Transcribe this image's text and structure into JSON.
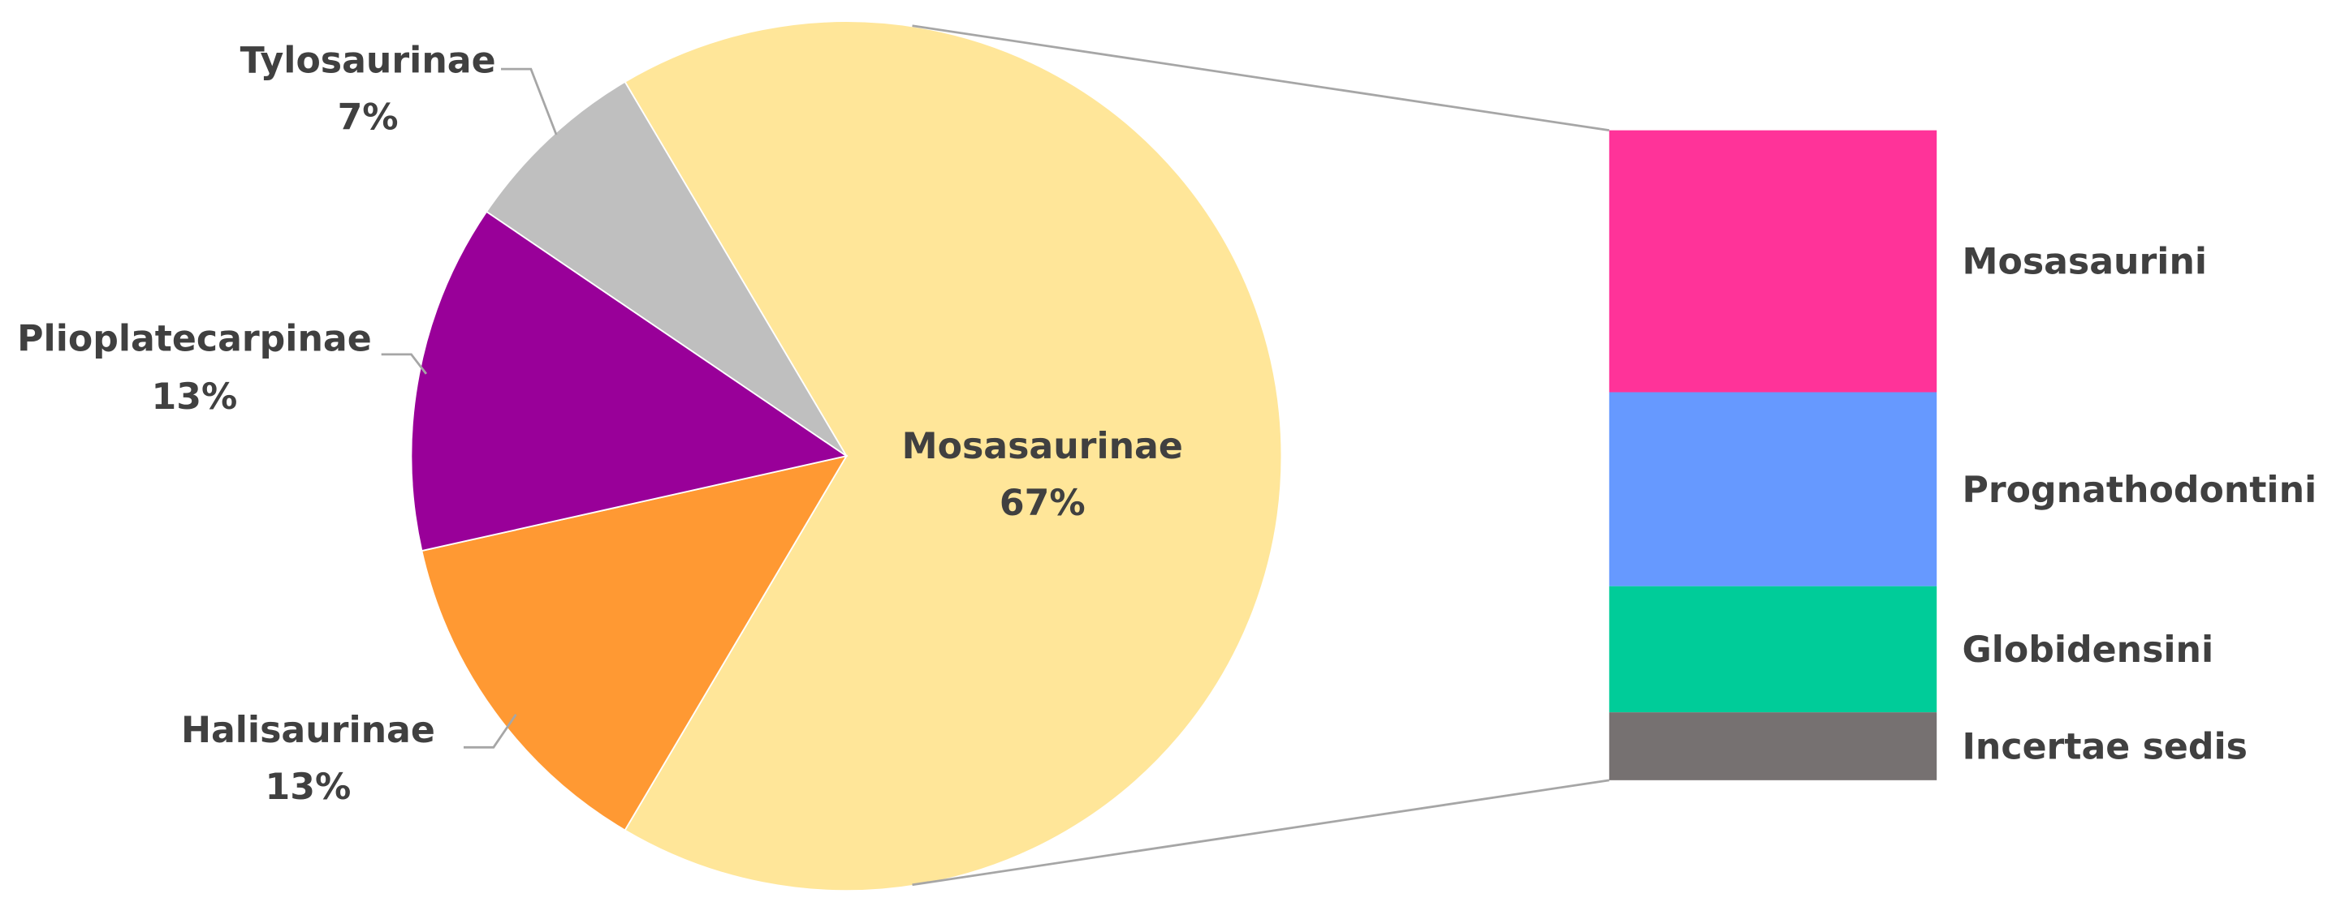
{
  "chart_data": {
    "type": "pie",
    "categories": [
      "Mosasaurinae",
      "Halisaurinae",
      "Plioplatecarpinae",
      "Tylosaurinae"
    ],
    "values": [
      67,
      13,
      13,
      7
    ],
    "value_labels": [
      "67%",
      "13%",
      "13%",
      "7%"
    ],
    "colors": [
      "#FFE699",
      "#FF9933",
      "#990099",
      "#BFBFBF"
    ],
    "breakdown": {
      "type": "stacked-bar",
      "categories": [
        "Mosasaurini",
        "Prognathodontini",
        "Globidensini",
        "Incertae sedis"
      ],
      "values": [
        27,
        20,
        13,
        7
      ],
      "colors": [
        "#FF3399",
        "#6699FF",
        "#00CC99",
        "#767171"
      ]
    }
  }
}
